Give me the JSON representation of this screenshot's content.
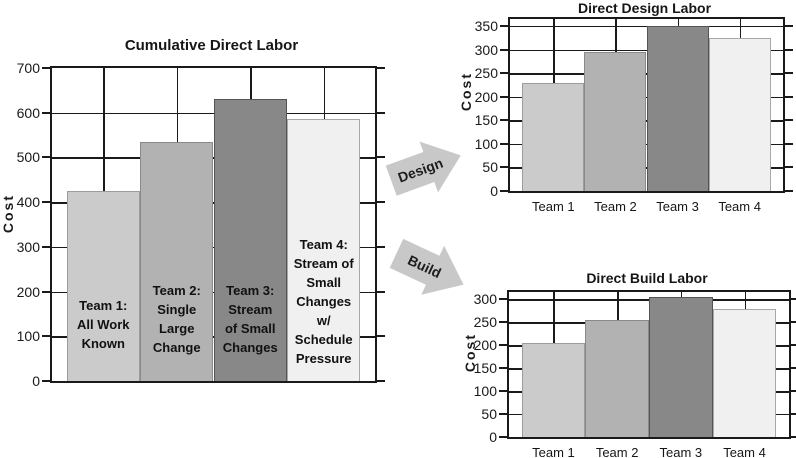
{
  "colors": {
    "background": "#ffffff",
    "axis": "#1a1a1a",
    "bar_fills": [
      "#cbcbcb",
      "#b2b2b2",
      "#888888",
      "#f0f0f0"
    ],
    "bar_borders": [
      "#9c9c9c",
      "#8a8a8a",
      "#545454",
      "#a8a8a8"
    ],
    "arrow_fill": "#c8c8c8",
    "arrow_text": "#1d1d1d"
  },
  "arrows": [
    {
      "label": "Design",
      "direction": "up-right"
    },
    {
      "label": "Build",
      "direction": "down-right"
    }
  ],
  "chart_data": [
    {
      "id": "cumulative",
      "type": "bar",
      "title": "Cumulative Direct Labor",
      "ylabel": "Cost",
      "categories": [
        "Team 1",
        "Team 2",
        "Team 3",
        "Team 4"
      ],
      "values": [
        425,
        535,
        630,
        585
      ],
      "bar_labels": [
        [
          "Team 1:",
          "All Work",
          "Known"
        ],
        [
          "Team 2:",
          "Single",
          "Large",
          "Change"
        ],
        [
          "Team 3:",
          "Stream",
          "of Small",
          "Changes"
        ],
        [
          "Team 4:",
          "Stream of",
          "Small",
          "Changes",
          "w/",
          "Schedule",
          "Pressure"
        ]
      ],
      "ylim": [
        0,
        700
      ],
      "yticks": [
        0,
        100,
        200,
        300,
        400,
        500,
        600,
        700
      ],
      "grid": true,
      "legend": false,
      "x_axis_labels_visible": false
    },
    {
      "id": "design",
      "type": "bar",
      "title": "Direct Design Labor",
      "ylabel": "Cost",
      "categories": [
        "Team 1",
        "Team 2",
        "Team 3",
        "Team 4"
      ],
      "values": [
        230,
        295,
        350,
        325
      ],
      "ylim": [
        0,
        365
      ],
      "yticks": [
        0,
        50,
        100,
        150,
        200,
        250,
        300,
        350
      ],
      "grid": true,
      "legend": false,
      "x_axis_labels_visible": true
    },
    {
      "id": "build",
      "type": "bar",
      "title": "Direct Build Labor",
      "ylabel": "Cost",
      "categories": [
        "Team 1",
        "Team 2",
        "Team 3",
        "Team 4"
      ],
      "values": [
        205,
        255,
        305,
        280
      ],
      "ylim": [
        0,
        316
      ],
      "yticks": [
        0,
        50,
        100,
        150,
        200,
        250,
        300
      ],
      "grid": true,
      "legend": false,
      "x_axis_labels_visible": true
    }
  ]
}
